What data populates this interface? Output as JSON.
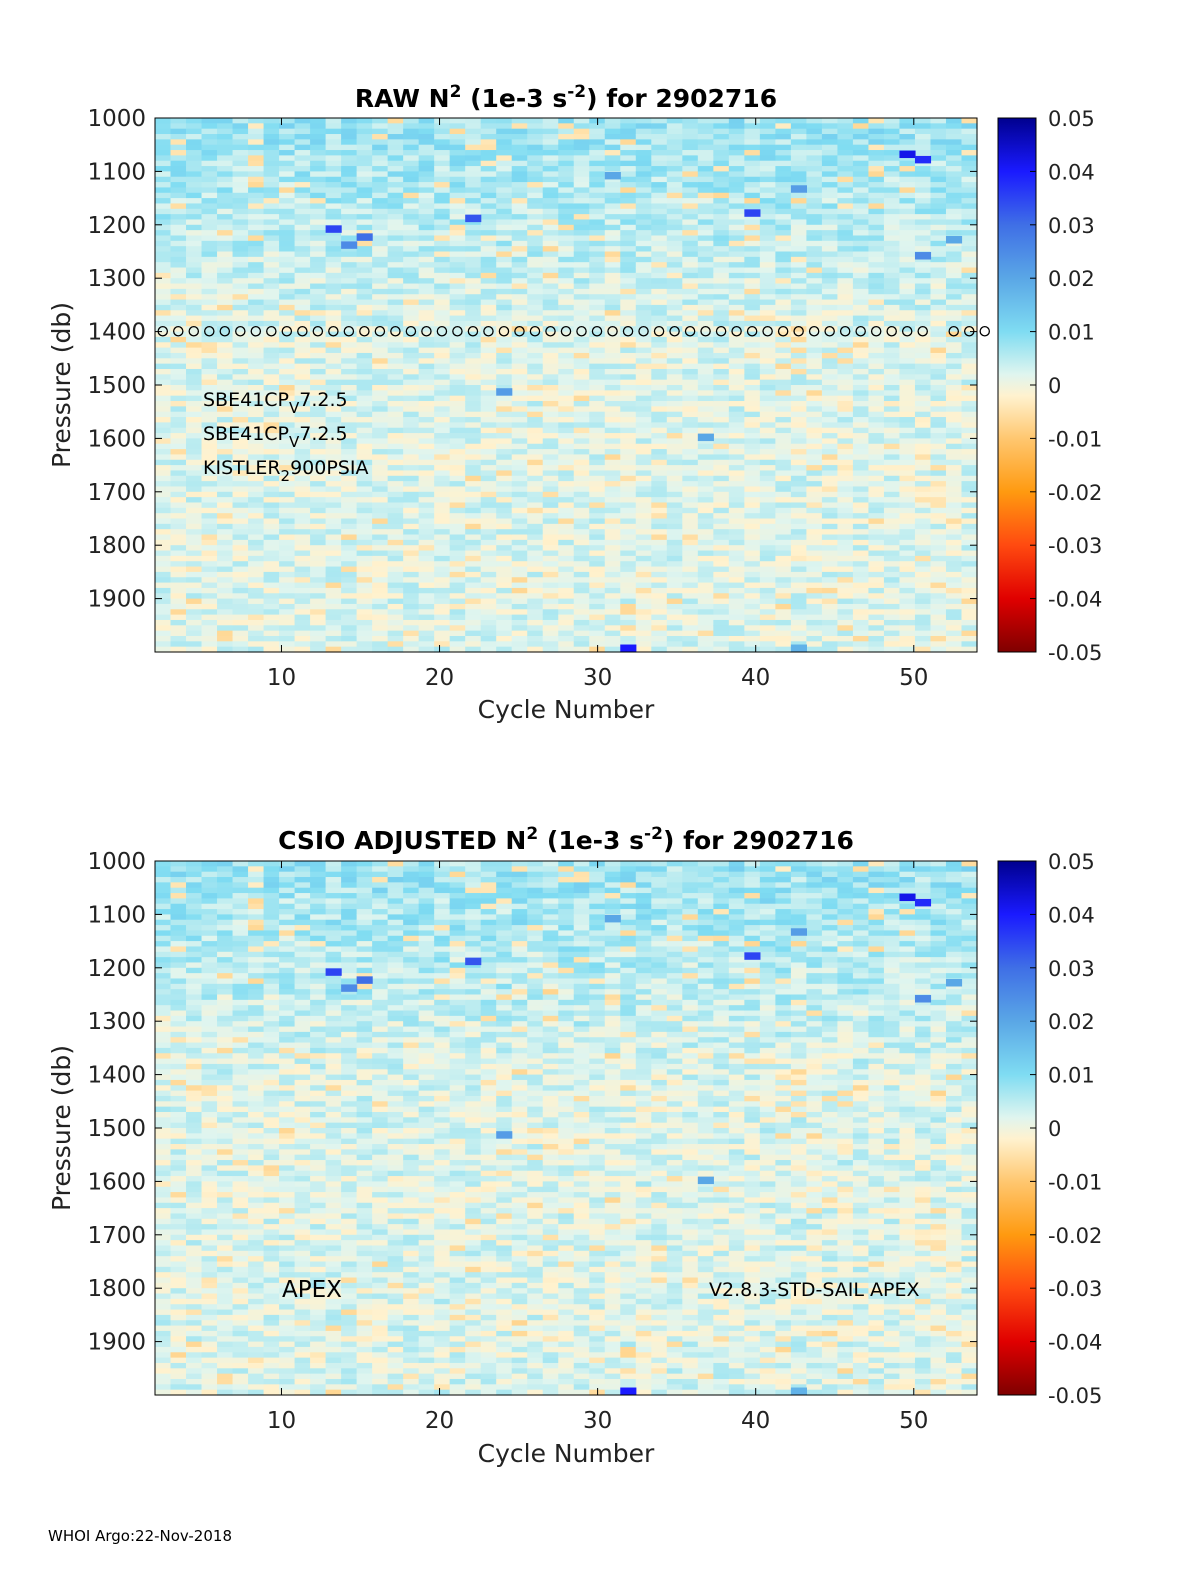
{
  "footer": "WHOI Argo:22-Nov-2018",
  "chart_data": [
    {
      "type": "heatmap",
      "title": "RAW N² (1e-3 s⁻²) for 2902716",
      "title_parts": {
        "prefix": "RAW N",
        "sup1": "2",
        "mid": " (1e-3 s",
        "sup2": "-2",
        "suffix": ") for 2902716"
      },
      "xlabel": "Cycle Number",
      "ylabel": "Pressure (db)",
      "xlim": [
        2,
        54
      ],
      "ylim": [
        1000,
        2000
      ],
      "y_reversed": true,
      "x_ticks": [
        10,
        20,
        30,
        40,
        50
      ],
      "y_ticks": [
        1000,
        1100,
        1200,
        1300,
        1400,
        1500,
        1600,
        1700,
        1800,
        1900
      ],
      "colorbar": {
        "range": [
          -0.05,
          0.05
        ],
        "ticks": [
          "0.05",
          "0.04",
          "0.03",
          "0.02",
          "0.01",
          "0",
          "-0.01",
          "-0.02",
          "-0.03",
          "-0.04",
          "-0.05"
        ]
      },
      "marker_line": {
        "pressure": 1390,
        "symbol": "o",
        "cycles": [
          2,
          3,
          4,
          5,
          6,
          7,
          8,
          9,
          10,
          11,
          12,
          13,
          14,
          15,
          16,
          17,
          18,
          19,
          20,
          21,
          22,
          23,
          24,
          25,
          26,
          27,
          28,
          29,
          30,
          31,
          32,
          33,
          34,
          35,
          36,
          37,
          38,
          39,
          40,
          41,
          42,
          43,
          44,
          45,
          46,
          47,
          48,
          49,
          50,
          51,
          53,
          54,
          55
        ]
      },
      "annotations": [
        {
          "base": "SBE41CP",
          "sub": "V",
          "tail": "7.2.5"
        },
        {
          "base": "SBE41CP",
          "sub": "V",
          "tail": "7.2.5"
        },
        {
          "base": "KISTLER",
          "sub": "2",
          "tail": "900PSIA"
        }
      ],
      "strong_cells": [
        {
          "cycle": 13,
          "pressure": 1205,
          "value": 0.035
        },
        {
          "cycle": 14,
          "pressure": 1235,
          "value": 0.025
        },
        {
          "cycle": 15,
          "pressure": 1220,
          "value": 0.03
        },
        {
          "cycle": 22,
          "pressure": 1185,
          "value": 0.033
        },
        {
          "cycle": 24,
          "pressure": 1510,
          "value": 0.022
        },
        {
          "cycle": 31,
          "pressure": 1105,
          "value": 0.02
        },
        {
          "cycle": 32,
          "pressure": 1990,
          "value": 0.04
        },
        {
          "cycle": 37,
          "pressure": 1595,
          "value": 0.02
        },
        {
          "cycle": 40,
          "pressure": 1175,
          "value": 0.035
        },
        {
          "cycle": 43,
          "pressure": 1130,
          "value": 0.022
        },
        {
          "cycle": 43,
          "pressure": 1990,
          "value": 0.018
        },
        {
          "cycle": 50,
          "pressure": 1065,
          "value": 0.042
        },
        {
          "cycle": 51,
          "pressure": 1075,
          "value": 0.038
        },
        {
          "cycle": 51,
          "pressure": 1255,
          "value": 0.025
        },
        {
          "cycle": 53,
          "pressure": 1225,
          "value": 0.02
        }
      ]
    },
    {
      "type": "heatmap",
      "title": "CSIO  ADJUSTED N² (1e-3 s⁻²) for 2902716",
      "title_parts": {
        "prefix": "CSIO  ADJUSTED N",
        "sup1": "2",
        "mid": " (1e-3 s",
        "sup2": "-2",
        "suffix": ") for 2902716"
      },
      "xlabel": "Cycle Number",
      "ylabel": "Pressure (db)",
      "xlim": [
        2,
        54
      ],
      "ylim": [
        1000,
        2000
      ],
      "y_reversed": true,
      "x_ticks": [
        10,
        20,
        30,
        40,
        50
      ],
      "y_ticks": [
        1000,
        1100,
        1200,
        1300,
        1400,
        1500,
        1600,
        1700,
        1800,
        1900
      ],
      "colorbar": {
        "range": [
          -0.05,
          0.05
        ],
        "ticks": [
          "0.05",
          "0.04",
          "0.03",
          "0.02",
          "0.01",
          "0",
          "-0.01",
          "-0.02",
          "-0.03",
          "-0.04",
          "-0.05"
        ]
      },
      "text_labels": [
        "APEX",
        "V2.8.3-STD-SAIL APEX"
      ],
      "strong_cells": [
        {
          "cycle": 13,
          "pressure": 1205,
          "value": 0.035
        },
        {
          "cycle": 14,
          "pressure": 1235,
          "value": 0.025
        },
        {
          "cycle": 15,
          "pressure": 1220,
          "value": 0.03
        },
        {
          "cycle": 22,
          "pressure": 1185,
          "value": 0.033
        },
        {
          "cycle": 24,
          "pressure": 1510,
          "value": 0.022
        },
        {
          "cycle": 31,
          "pressure": 1105,
          "value": 0.02
        },
        {
          "cycle": 32,
          "pressure": 1990,
          "value": 0.04
        },
        {
          "cycle": 37,
          "pressure": 1595,
          "value": 0.02
        },
        {
          "cycle": 40,
          "pressure": 1175,
          "value": 0.035
        },
        {
          "cycle": 43,
          "pressure": 1130,
          "value": 0.022
        },
        {
          "cycle": 43,
          "pressure": 1990,
          "value": 0.018
        },
        {
          "cycle": 50,
          "pressure": 1065,
          "value": 0.042
        },
        {
          "cycle": 51,
          "pressure": 1075,
          "value": 0.038
        },
        {
          "cycle": 51,
          "pressure": 1255,
          "value": 0.025
        },
        {
          "cycle": 53,
          "pressure": 1225,
          "value": 0.02
        }
      ]
    }
  ]
}
